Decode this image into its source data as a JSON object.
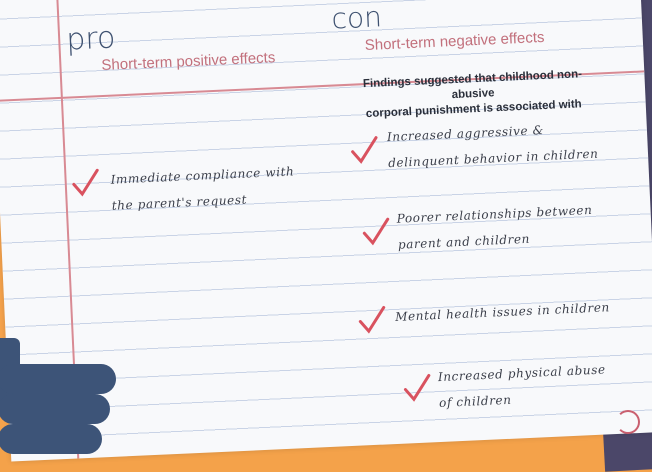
{
  "pro": {
    "title": "pro",
    "subtitle": "Short-term positive effects",
    "items": [
      "Immediate compliance with\nthe parent's request"
    ]
  },
  "con": {
    "title": "con",
    "subtitle": "Short-term negative effects",
    "intro": "Findings suggested that childhood non-abusive\ncorporal punishment is associated with",
    "items": [
      "Increased aggressive &\ndelinquent behavior in children",
      "Poorer relationships between\nparent and children",
      "Mental health issues in children",
      "Increased physical abuse\nof children"
    ]
  },
  "colors": {
    "accent": "#c2707c",
    "check": "#d9525f",
    "ink": "#3e5170",
    "background": "#f6a34c"
  },
  "icons": [
    "checkmark-icon",
    "pointing-hand"
  ]
}
